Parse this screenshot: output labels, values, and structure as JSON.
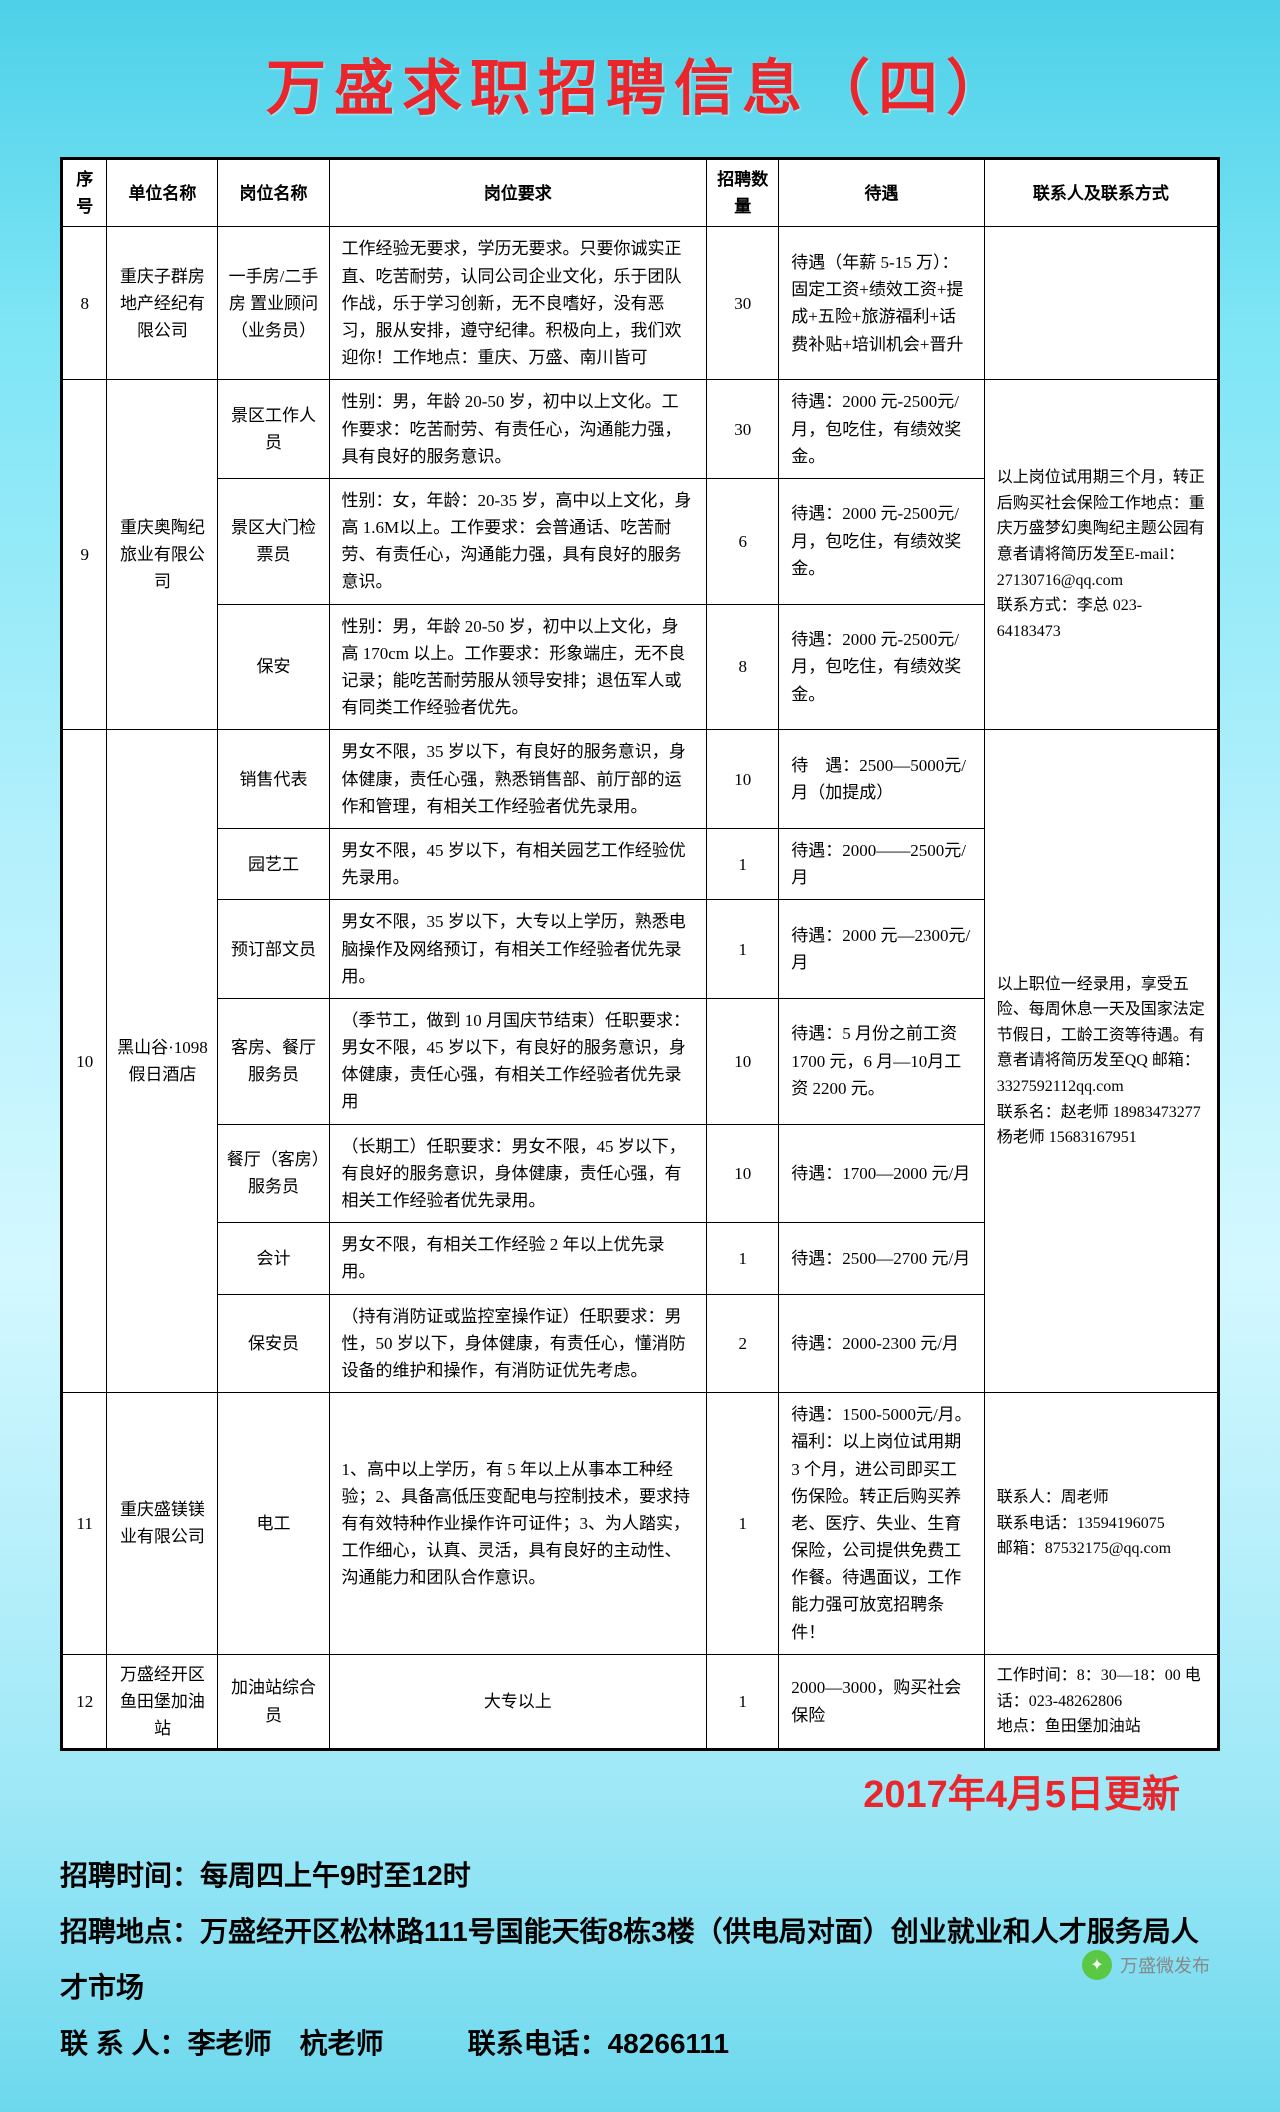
{
  "title": "万盛求职招聘信息（四）",
  "headers": [
    "序号",
    "单位名称",
    "岗位名称",
    "岗位要求",
    "招聘数量",
    "待遇",
    "联系人及联系方式"
  ],
  "update": "2017年4月5日更新",
  "footer": {
    "time_label": "招聘时间：",
    "time_value": "每周四上午9时至12时",
    "addr_label": "招聘地点：",
    "addr_value": "万盛经开区松林路111号国能天街8栋3楼（供电局对面）创业就业和人才服务局人才市场",
    "contact_label": "联 系 人：",
    "contact_value": "李老师　杭老师",
    "phone_label": "联系电话：",
    "phone_value": "48266111"
  },
  "watermark": "万盛微发布",
  "rows": {
    "r8": {
      "seq": "8",
      "comp": "重庆子群房地产经纪有限公司",
      "pos": "一手房/二手房 置业顾问（业务员）",
      "req": "工作经验无要求，学历无要求。只要你诚实正直、吃苦耐劳，认同公司企业文化，乐于团队作战，乐于学习创新，无不良嗜好，没有恶习，服从安排，遵守纪律。积极向上，我们欢迎你！工作地点：重庆、万盛、南川皆可",
      "num": "30",
      "treat": "待遇（年薪 5-15 万）：固定工资+绩效工资+提成+五险+旅游福利+话费补贴+培训机会+晋升",
      "contact": ""
    },
    "r9": {
      "seq": "9",
      "comp": "重庆奥陶纪旅业有限公司",
      "p1": {
        "pos": "景区工作人员",
        "req": "性别：男，年龄 20-50 岁，初中以上文化。工作要求：吃苦耐劳、有责任心，沟通能力强，具有良好的服务意识。",
        "num": "30",
        "treat": "待遇：2000 元-2500元/月，包吃住，有绩效奖金。"
      },
      "p2": {
        "pos": "景区大门检票员",
        "req": "性别：女，年龄：20-35 岁，高中以上文化，身高 1.6M以上。工作要求：会普通话、吃苦耐劳、有责任心，沟通能力强，具有良好的服务意识。",
        "num": "6",
        "treat": "待遇：2000 元-2500元/月，包吃住，有绩效奖金。"
      },
      "p3": {
        "pos": "保安",
        "req": "性别：男，年龄 20-50 岁，初中以上文化，身高 170cm 以上。工作要求：形象端庄，无不良记录；能吃苦耐劳服从领导安排；退伍军人或有同类工作经验者优先。",
        "num": "8",
        "treat": "待遇：2000 元-2500元/月，包吃住，有绩效奖金。"
      },
      "contact": "以上岗位试用期三个月，转正后购买社会保险工作地点：重庆万盛梦幻奥陶纪主题公园有意者请将简历发至E-mail：27130716@qq.com\n联系方式：李总  023-64183473"
    },
    "r10": {
      "seq": "10",
      "comp": "黑山谷·1098 假日酒店",
      "p1": {
        "pos": "销售代表",
        "req": "男女不限，35 岁以下，有良好的服务意识，身体健康，责任心强，熟悉销售部、前厅部的运作和管理，有相关工作经验者优先录用。",
        "num": "10",
        "treat": "待　遇：2500—5000元/月（加提成）"
      },
      "p2": {
        "pos": "园艺工",
        "req": "男女不限，45 岁以下，有相关园艺工作经验优先录用。",
        "num": "1",
        "treat": "待遇：2000——2500元/月"
      },
      "p3": {
        "pos": "预订部文员",
        "req": "男女不限，35 岁以下，大专以上学历，熟悉电脑操作及网络预订，有相关工作经验者优先录用。",
        "num": "1",
        "treat": "待遇：2000 元—2300元/月"
      },
      "p4": {
        "pos": "客房、餐厅服务员",
        "req": "（季节工，做到 10 月国庆节结束）任职要求：男女不限，45 岁以下，有良好的服务意识，身体健康，责任心强，有相关工作经验者优先录用",
        "num": "10",
        "treat": "待遇：5 月份之前工资 1700 元，6 月—10月工资 2200 元。"
      },
      "p5": {
        "pos": "餐厅（客房）服务员",
        "req": "（长期工）任职要求：男女不限，45 岁以下，有良好的服务意识，身体健康，责任心强，有相关工作经验者优先录用。",
        "num": "10",
        "treat": "待遇：1700—2000 元/月"
      },
      "p6": {
        "pos": "会计",
        "req": "男女不限，有相关工作经验 2 年以上优先录用。",
        "num": "1",
        "treat": "待遇：2500—2700 元/月"
      },
      "p7": {
        "pos": "保安员",
        "req": "（持有消防证或监控室操作证）任职要求：男性，50 岁以下，身体健康，有责任心，懂消防设备的维护和操作，有消防证优先考虑。",
        "num": "2",
        "treat": "待遇：2000-2300 元/月"
      },
      "contact": "以上职位一经录用，享受五险、每周休息一天及国家法定节假日，工龄工资等待遇。有意者请将简历发至QQ 邮箱：3327592112qq.com\n联系名：赵老师  18983473277\n杨老师  15683167951"
    },
    "r11": {
      "seq": "11",
      "comp": "重庆盛镁镁业有限公司",
      "pos": "电工",
      "req": "1、高中以上学历，有 5 年以上从事本工种经验；2、具备高低压变配电与控制技术，要求持有有效特种作业操作许可证件；3、为人踏实，工作细心，认真、灵活，具有良好的主动性、沟通能力和团队合作意识。",
      "num": "1",
      "treat": "待遇：1500-5000元/月。福利：以上岗位试用期 3 个月，进公司即买工伤保险。转正后购买养老、医疗、失业、生育保险，公司提供免费工作餐。待遇面议，工作能力强可放宽招聘条件！",
      "contact": "联系人：周老师\n联系电话：13594196075\n邮箱：87532175@qq.com"
    },
    "r12": {
      "seq": "12",
      "comp": "万盛经开区鱼田堡加油站",
      "pos": "加油站综合员",
      "req": "大专以上",
      "num": "1",
      "treat": "2000—3000，购买社会保险",
      "contact": "工作时间：8：30—18：00 电话：023-48262806\n地点：鱼田堡加油站"
    }
  }
}
